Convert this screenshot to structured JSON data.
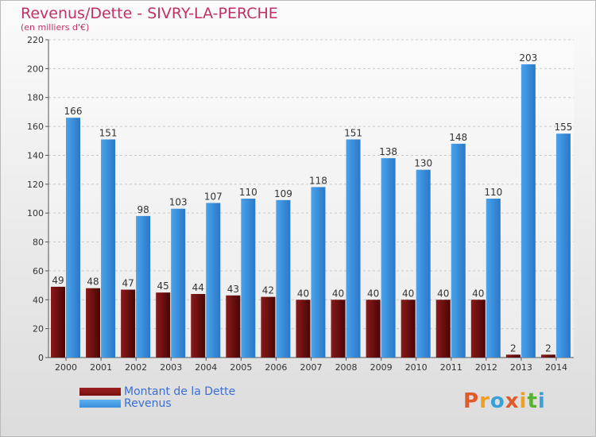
{
  "title": "Revenus/Dette - SIVRY-LA-PERCHE",
  "subtitle": "(en milliers d'€)",
  "logo": {
    "text": "Proxiti",
    "colors": [
      "#e05a2a",
      "#f0a020",
      "#3aa0d8",
      "#e05a2a",
      "#f0a020",
      "#5ab030",
      "#3aa0d8"
    ]
  },
  "chart_data": {
    "type": "bar",
    "categories": [
      "2000",
      "2001",
      "2002",
      "2003",
      "2004",
      "2005",
      "2006",
      "2007",
      "2008",
      "2009",
      "2010",
      "2011",
      "2012",
      "2013",
      "2014"
    ],
    "series": [
      {
        "name": "Montant de la Dette",
        "color": "#7a1010",
        "values": [
          49,
          48,
          47,
          45,
          44,
          43,
          42,
          40,
          40,
          40,
          40,
          40,
          40,
          2,
          2
        ]
      },
      {
        "name": "Revenus",
        "color": "#3a8fdc",
        "values": [
          166,
          151,
          98,
          103,
          107,
          110,
          109,
          118,
          151,
          138,
          130,
          148,
          110,
          203,
          155
        ]
      }
    ],
    "ylim": [
      0,
      220
    ],
    "yticks": [
      0,
      20,
      40,
      60,
      80,
      100,
      120,
      140,
      160,
      180,
      200,
      220
    ],
    "grid": true,
    "legend": "bottom-left"
  }
}
